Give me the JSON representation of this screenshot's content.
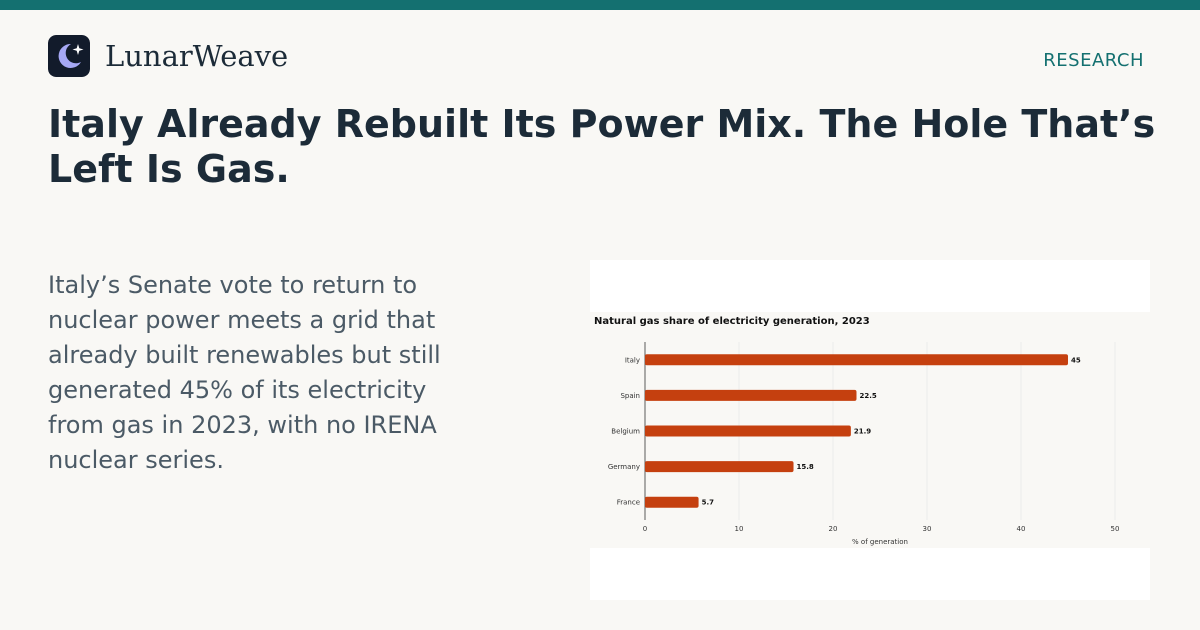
{
  "colors": {
    "top_bar": "#147070",
    "accent": "#147070",
    "logo_bg": "#121b2b",
    "logo_moon": "#a6a8f5",
    "bar": "#c5400f",
    "grid": "#ececec"
  },
  "brand": {
    "name": "LunarWeave",
    "logo_icon": "moon-sparkle-icon"
  },
  "section_label": "RESEARCH",
  "headline": "Italy Already Rebuilt Its Power Mix. The Hole That’s Left Is Gas.",
  "dek": "Italy’s Senate vote to return to nuclear power meets a grid that already built renewables but still generated 45% of its electricity from gas in 2023, with no IRENA nuclear series.",
  "chart_data": {
    "type": "bar",
    "orientation": "horizontal",
    "title": "Natural gas share of electricity generation, 2023",
    "xlabel": "% of generation",
    "ylabel": "",
    "categories": [
      "Italy",
      "Spain",
      "Belgium",
      "Germany",
      "France"
    ],
    "values": [
      45,
      22.5,
      21.9,
      15.8,
      5.7
    ],
    "data_labels": [
      "45",
      "22.5",
      "21.9",
      "15.8",
      "5.7"
    ],
    "xlim": [
      0,
      50
    ],
    "x_ticks": [
      0,
      10,
      20,
      30,
      40,
      50
    ],
    "grid": "vertical",
    "legend": "none"
  }
}
